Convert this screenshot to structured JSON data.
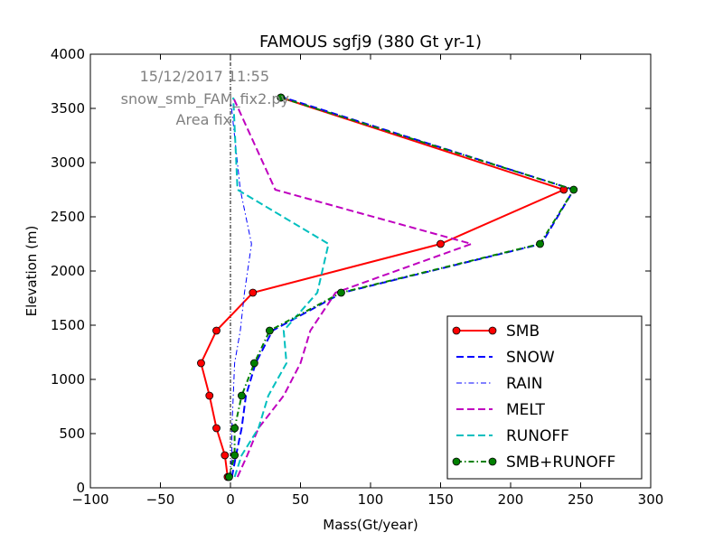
{
  "chart_data": {
    "type": "line",
    "title": "FAMOUS sgfj9 (380 Gt yr-1)",
    "xlabel": "Mass(Gt/year)",
    "ylabel": "Elevation (m)",
    "xlim": [
      -100,
      300
    ],
    "ylim": [
      0,
      4000
    ],
    "xticks": [
      -100,
      -50,
      0,
      50,
      100,
      150,
      200,
      250,
      300
    ],
    "yticks": [
      0,
      500,
      1000,
      1500,
      2000,
      2500,
      3000,
      3500,
      4000
    ],
    "grid": false,
    "legend_position": "lower-right",
    "annotations": [
      "15/12/2017 11:55",
      "snow_smb_FAM_fix2.py",
      "Area fix"
    ],
    "zero_line": {
      "x": 0
    },
    "y": [
      100,
      300,
      550,
      850,
      1150,
      1450,
      1800,
      2250,
      2750,
      3600
    ],
    "series": [
      {
        "name": "SMB",
        "color": "#ff0000",
        "style": "solid",
        "marker": "circle",
        "x": [
          -2,
          -4,
          -10,
          -15,
          -21,
          -10,
          16,
          150,
          238,
          36
        ]
      },
      {
        "name": "SNOW",
        "color": "#0000ff",
        "style": "dashed",
        "marker": "none",
        "x": [
          1,
          4,
          8,
          11,
          18,
          30,
          80,
          222,
          245,
          38
        ]
      },
      {
        "name": "RAIN",
        "color": "#0000ff",
        "style": "dashdot",
        "marker": "none",
        "x": [
          0,
          1,
          1,
          2,
          3,
          7,
          10,
          15,
          7,
          0
        ]
      },
      {
        "name": "MELT",
        "color": "#bf00bf",
        "style": "dashed",
        "marker": "none",
        "x": [
          5,
          12,
          20,
          38,
          50,
          57,
          75,
          172,
          32,
          2
        ]
      },
      {
        "name": "RUNOFF",
        "color": "#00bfbf",
        "style": "dashed",
        "marker": "none",
        "x": [
          3,
          8,
          20,
          27,
          40,
          38,
          62,
          70,
          5,
          2
        ]
      },
      {
        "name": "SMB+RUNOFF",
        "color": "#008000",
        "style": "dashdot",
        "marker": "circle",
        "x": [
          -1,
          3,
          3,
          8,
          17,
          28,
          79,
          221,
          245,
          36
        ]
      }
    ]
  }
}
